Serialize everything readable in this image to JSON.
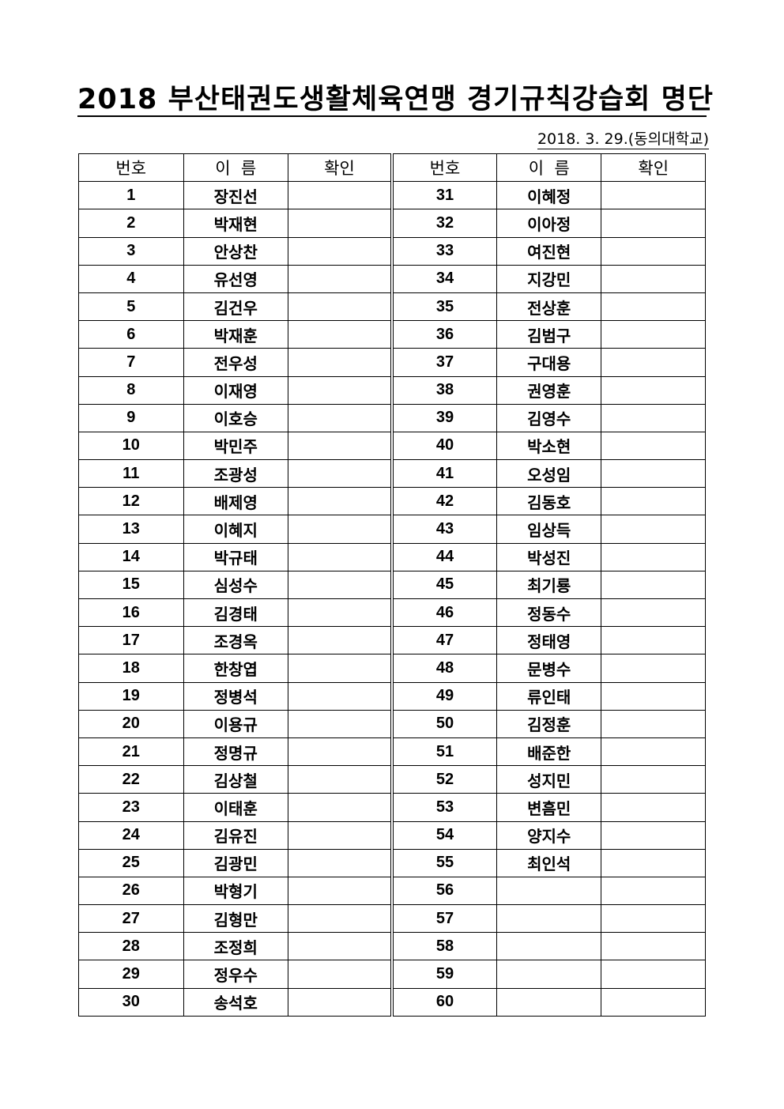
{
  "title": "2018 부산태권도생활체육연맹 경기규칙강습회 명단",
  "date_line": "2018. 3. 29.(동의대학교)",
  "headers": [
    "번호",
    "이  름",
    "확인",
    "번호",
    "이  름",
    "확인"
  ],
  "roster": [
    {
      "no": "1",
      "name": "장진선"
    },
    {
      "no": "2",
      "name": "박재현"
    },
    {
      "no": "3",
      "name": "안상찬"
    },
    {
      "no": "4",
      "name": "유선영"
    },
    {
      "no": "5",
      "name": "김건우"
    },
    {
      "no": "6",
      "name": "박재훈"
    },
    {
      "no": "7",
      "name": "전우성"
    },
    {
      "no": "8",
      "name": "이재영"
    },
    {
      "no": "9",
      "name": "이호승"
    },
    {
      "no": "10",
      "name": "박민주"
    },
    {
      "no": "11",
      "name": "조광성"
    },
    {
      "no": "12",
      "name": "배제영"
    },
    {
      "no": "13",
      "name": "이혜지"
    },
    {
      "no": "14",
      "name": "박규태"
    },
    {
      "no": "15",
      "name": "심성수"
    },
    {
      "no": "16",
      "name": "김경태"
    },
    {
      "no": "17",
      "name": "조경옥"
    },
    {
      "no": "18",
      "name": "한창엽"
    },
    {
      "no": "19",
      "name": "정병석"
    },
    {
      "no": "20",
      "name": "이용규"
    },
    {
      "no": "21",
      "name": "정명규"
    },
    {
      "no": "22",
      "name": "김상철"
    },
    {
      "no": "23",
      "name": "이태훈"
    },
    {
      "no": "24",
      "name": "김유진"
    },
    {
      "no": "25",
      "name": "김광민"
    },
    {
      "no": "26",
      "name": "박형기"
    },
    {
      "no": "27",
      "name": "김형만"
    },
    {
      "no": "28",
      "name": "조정희"
    },
    {
      "no": "29",
      "name": "정우수"
    },
    {
      "no": "30",
      "name": "송석호"
    },
    {
      "no": "31",
      "name": "이혜정"
    },
    {
      "no": "32",
      "name": "이아정"
    },
    {
      "no": "33",
      "name": "여진현"
    },
    {
      "no": "34",
      "name": "지강민"
    },
    {
      "no": "35",
      "name": "전상훈"
    },
    {
      "no": "36",
      "name": "김범구"
    },
    {
      "no": "37",
      "name": "구대용"
    },
    {
      "no": "38",
      "name": "권영훈"
    },
    {
      "no": "39",
      "name": "김영수"
    },
    {
      "no": "40",
      "name": "박소현"
    },
    {
      "no": "41",
      "name": "오성임"
    },
    {
      "no": "42",
      "name": "김동호"
    },
    {
      "no": "43",
      "name": "임상득"
    },
    {
      "no": "44",
      "name": "박성진"
    },
    {
      "no": "45",
      "name": "최기룡"
    },
    {
      "no": "46",
      "name": "정동수"
    },
    {
      "no": "47",
      "name": "정태영"
    },
    {
      "no": "48",
      "name": "문병수"
    },
    {
      "no": "49",
      "name": "류인태"
    },
    {
      "no": "50",
      "name": "김정훈"
    },
    {
      "no": "51",
      "name": "배준한"
    },
    {
      "no": "52",
      "name": "성지민"
    },
    {
      "no": "53",
      "name": "변흠민"
    },
    {
      "no": "54",
      "name": "양지수"
    },
    {
      "no": "55",
      "name": "최인석"
    },
    {
      "no": "56",
      "name": ""
    },
    {
      "no": "57",
      "name": ""
    },
    {
      "no": "58",
      "name": ""
    },
    {
      "no": "59",
      "name": ""
    },
    {
      "no": "60",
      "name": ""
    }
  ]
}
